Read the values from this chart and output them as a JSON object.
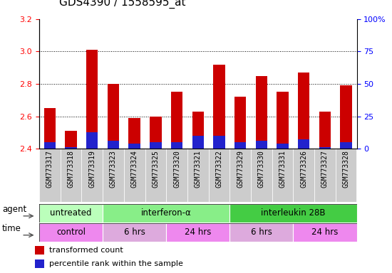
{
  "title": "GDS4390 / 1558595_at",
  "samples": [
    "GSM773317",
    "GSM773318",
    "GSM773319",
    "GSM773323",
    "GSM773324",
    "GSM773325",
    "GSM773320",
    "GSM773321",
    "GSM773322",
    "GSM773329",
    "GSM773330",
    "GSM773331",
    "GSM773326",
    "GSM773327",
    "GSM773328"
  ],
  "red_values": [
    2.65,
    2.51,
    3.01,
    2.8,
    2.59,
    2.6,
    2.75,
    2.63,
    2.92,
    2.72,
    2.85,
    2.75,
    2.87,
    2.63,
    2.79
  ],
  "blue_values": [
    2.44,
    2.41,
    2.5,
    2.45,
    2.43,
    2.44,
    2.44,
    2.48,
    2.48,
    2.44,
    2.45,
    2.43,
    2.46,
    2.41,
    2.44
  ],
  "bar_bottom": 2.4,
  "ylim": [
    2.4,
    3.2
  ],
  "yticks_left": [
    2.4,
    2.6,
    2.8,
    3.0,
    3.2
  ],
  "yticks_right": [
    0,
    25,
    50,
    75,
    100
  ],
  "right_tick_labels": [
    "0",
    "25",
    "50",
    "75",
    "100%"
  ],
  "grid_values": [
    2.6,
    2.8,
    3.0
  ],
  "agent_groups": [
    {
      "label": "untreated",
      "start": 0,
      "end": 3,
      "color": "#bbffbb"
    },
    {
      "label": "interferon-α",
      "start": 3,
      "end": 9,
      "color": "#88ee88"
    },
    {
      "label": "interleukin 28B",
      "start": 9,
      "end": 15,
      "color": "#44cc44"
    }
  ],
  "time_groups": [
    {
      "label": "control",
      "start": 0,
      "end": 3,
      "color": "#ee88ee"
    },
    {
      "label": "6 hrs",
      "start": 3,
      "end": 6,
      "color": "#ddaadd"
    },
    {
      "label": "24 hrs",
      "start": 6,
      "end": 9,
      "color": "#ee88ee"
    },
    {
      "label": "6 hrs",
      "start": 9,
      "end": 12,
      "color": "#ddaadd"
    },
    {
      "label": "24 hrs",
      "start": 12,
      "end": 15,
      "color": "#ee88ee"
    }
  ],
  "legend_items": [
    {
      "color": "#cc0000",
      "label": "transformed count"
    },
    {
      "color": "#0000cc",
      "label": "percentile rank within the sample"
    }
  ],
  "bar_width": 0.55,
  "red_color": "#cc0000",
  "blue_color": "#2222cc",
  "title_fontsize": 11,
  "tick_fontsize": 8,
  "xtick_fontsize": 7,
  "label_fontsize": 8.5,
  "xtick_bg_color": "#cccccc",
  "plot_bg_color": "#ffffff"
}
